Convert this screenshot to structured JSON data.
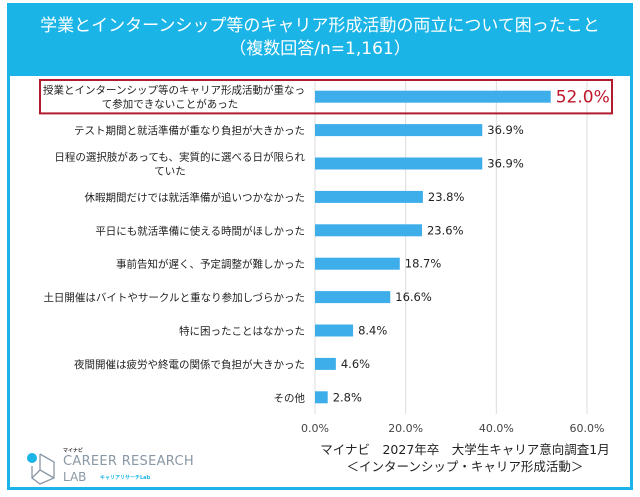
{
  "header": {
    "title": "学業とインターンシップ等のキャリア形成活動の両立について困ったこと",
    "subtitle": "（複数回答/n=1,161）"
  },
  "chart_data": {
    "type": "bar",
    "orientation": "horizontal",
    "title": "学業とインターンシップ等のキャリア形成活動の両立について困ったこと（複数回答/n=1,161）",
    "categories": [
      [
        "授業とインターンシップ等のキャリア形成活動が重なっ",
        "て参加できないことがあった"
      ],
      [
        "テスト期間と就活準備が重なり負担が大きかった"
      ],
      [
        "日程の選択肢があっても、実質的に選べる日が限られ",
        "ていた"
      ],
      [
        "休暇期間だけでは就活準備が追いつかなかった"
      ],
      [
        "平日にも就活準備に使える時間がほしかった"
      ],
      [
        "事前告知が遅く、予定調整が難しかった"
      ],
      [
        "土日開催はバイトやサークルと重なり参加しづらかった"
      ],
      [
        "特に困ったことはなかった"
      ],
      [
        "夜間開催は疲労や終電の関係で負担が大きかった"
      ],
      [
        "その他"
      ]
    ],
    "values": [
      52.0,
      36.9,
      36.9,
      23.8,
      23.6,
      18.7,
      16.6,
      8.4,
      4.6,
      2.8
    ],
    "value_labels": [
      "52.0%",
      "36.9%",
      "36.9%",
      "23.8%",
      "23.6%",
      "18.7%",
      "16.6%",
      "8.4%",
      "4.6%",
      "2.8%"
    ],
    "xlim": [
      0,
      60
    ],
    "ticks": [
      "0.0%",
      "20.0%",
      "40.0%",
      "60.0%"
    ],
    "grid": true,
    "highlight_index": 0,
    "colors": {
      "bar": "#3daee9",
      "highlight_box": "#b01c2e",
      "highlight_text": "#c0162a",
      "header": "#1ab4e6"
    }
  },
  "source": {
    "line1": "マイナビ　2027年卒　大学生キャリア意向調査1月",
    "line2": "＜インターンシップ・キャリア形成活動＞"
  },
  "logo": {
    "brand": "マイナビ",
    "line1": "CAREER RESEARCH",
    "line2": "LAB",
    "line3": "キャリアリサーチLab"
  }
}
